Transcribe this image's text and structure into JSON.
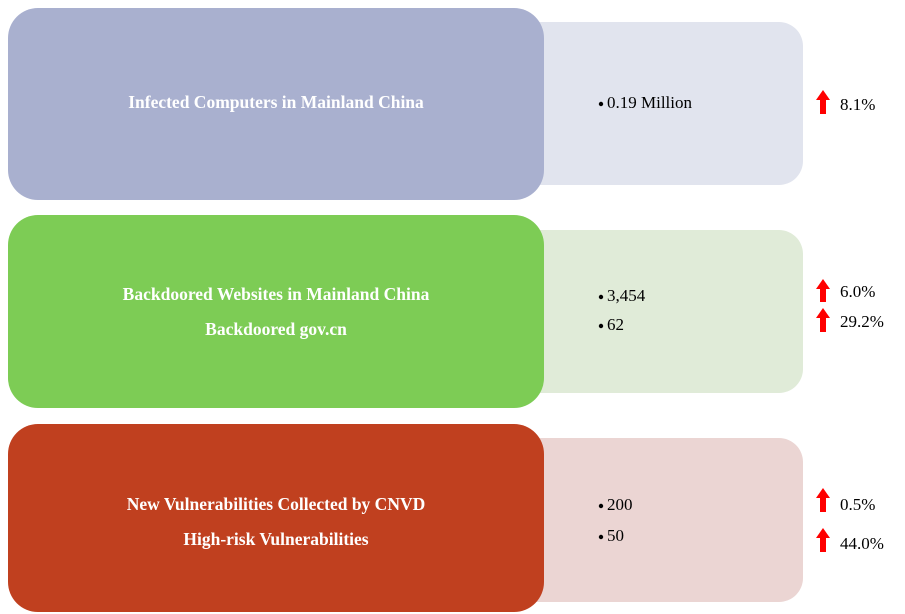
{
  "rows": [
    {
      "labels": [
        "Infected Computers in Mainland China"
      ],
      "values": [
        "0.19 Million"
      ],
      "changes": [
        "8.1%"
      ]
    },
    {
      "labels": [
        "Backdoored Websites in Mainland China",
        "Backdoored gov.cn"
      ],
      "values": [
        "3,454",
        "62"
      ],
      "changes": [
        "6.0%",
        "29.2%"
      ]
    },
    {
      "labels": [
        "New Vulnerabilities Collected by CNVD",
        "High-risk Vulnerabilities"
      ],
      "values": [
        "200",
        "50"
      ],
      "changes": [
        "0.5%",
        "44.0%"
      ]
    }
  ]
}
